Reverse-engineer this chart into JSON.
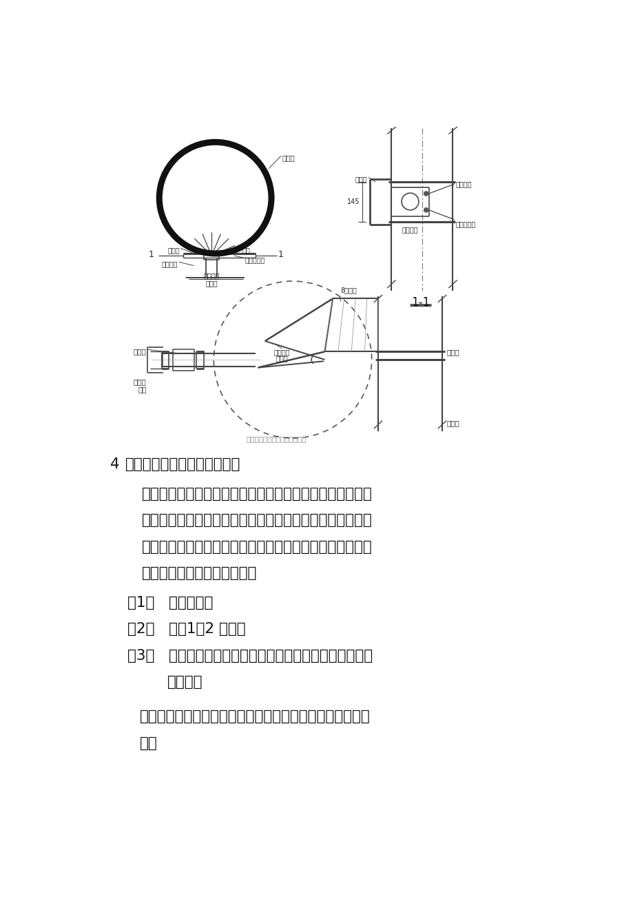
{
  "page_bg": "#ffffff",
  "text_color": "#222222",
  "line_color": "#444444",
  "section_number": "4",
  "section_title": "润泵水与润管砂浆的处理方式",
  "paragraph1": "混凝土泵启动后，应先泵送适量水以湿润混凝土泵的料斗、",
  "paragraph2": "活塞及输送管的内壁等直接与混凝土接触部位，经泵送水检",
  "paragraph3": "查，确认混凝土泵和输送管中无异物后，应采用下列方法之",
  "paragraph4": "一润滑混凝土泵和输送管内壁",
  "item1": "（1）   泵送水泥浆",
  "item2": "（2）   泵送1：2 水泥浆",
  "item3_line1": "（3）   泵送与混凝土内除粗骨料外的其他成分相同配合比的",
  "item3_line2": "水泥砂浆",
  "paragraph_final1": "润滑用的水泥浆或水泥砂浆应分散布料，不得集中浇注在同",
  "paragraph_final2": "一处",
  "label_gangganzhu": "钢管柱",
  "label_hanjieban_l": "焊接板",
  "label_taojie": "套接",
  "label_lajieluoshuan": "拉结螺栓",
  "label_kehuodong": "可活动钢板",
  "label_gudingganban": "固定钢板",
  "label_shusuguan": "输送管",
  "label_1_1": "1-1",
  "label_1a": "1",
  "label_1b": "1",
  "label_hanjieban_r": "焊接板",
  "label_lajie_r": "拉结螺栓",
  "label_kehuodong_r": "可活动钢板",
  "label_guding_r": "固定钢板",
  "label_145": "145",
  "label_jiezhifa": "截止阀",
  "label_danxiangfa": "单向阀",
  "label_8hou": "8厚钢板",
  "label_xiejiao": "斜比角度",
  "label_xiejiao2": "的钢板",
  "label_susuguan2": "输送管",
  "label_xiangjie": "箱箍",
  "label_gangganzhu2": "钢管柱",
  "caption": "顶升自密实钢管混凝土施工方法"
}
